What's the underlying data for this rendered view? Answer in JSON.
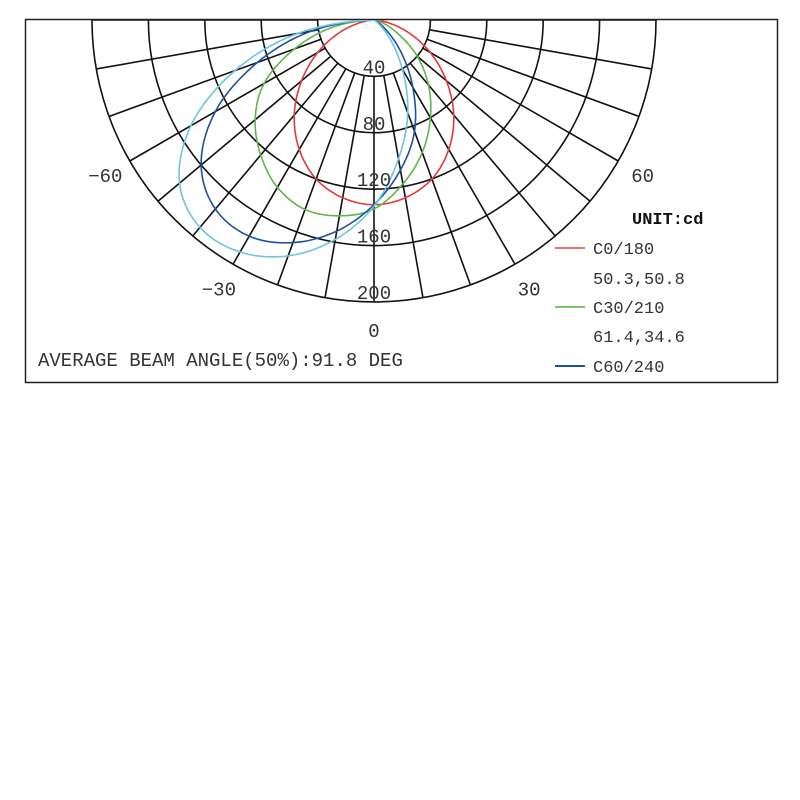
{
  "chart_data": {
    "type": "polar",
    "unit_label": "UNIT:cd",
    "radial_ticks": [
      40,
      80,
      120,
      160,
      200
    ],
    "radial_range": [
      0,
      200
    ],
    "angle_range": [
      -90,
      90
    ],
    "angle_labels": [
      -60,
      -30,
      0,
      30,
      60
    ],
    "angle_grid_step": 10,
    "grid": true,
    "legend_placement": "right",
    "annotation": "AVERAGE BEAM ANGLE(50%):91.8 DEG",
    "angles": [
      -90,
      -80,
      -70,
      -60,
      -50,
      -40,
      -30,
      -20,
      -10,
      0,
      10,
      20,
      30,
      40,
      50,
      60,
      70,
      80,
      90
    ],
    "series": [
      {
        "name": "C0/180",
        "beam": "50.3,50.8",
        "color": "#e8373b",
        "values": [
          0,
          9,
          26,
          46,
          67,
          88,
          106,
          120,
          128,
          131,
          128,
          120,
          106,
          88,
          67,
          46,
          26,
          9,
          0
        ]
      },
      {
        "name": "C30/210",
        "beam": "61.4,34.6",
        "color": "#5cb84a",
        "values": [
          0,
          30,
          60,
          90,
          110,
          125,
          137,
          143,
          141,
          134,
          118,
          100,
          80,
          60,
          40,
          20,
          8,
          2,
          0
        ]
      },
      {
        "name": "C60/240",
        "color": "#1f4fa0",
        "values": [
          0,
          45,
          88,
          130,
          160,
          175,
          177,
          168,
          152,
          131,
          108,
          84,
          55,
          30,
          12,
          4,
          0,
          0,
          0
        ]
      },
      {
        "color": "#6cc6dc",
        "values": [
          0,
          55,
          105,
          150,
          180,
          192,
          190,
          178,
          158,
          132,
          100,
          70,
          40,
          18,
          5,
          0,
          0,
          0,
          0
        ]
      }
    ]
  }
}
